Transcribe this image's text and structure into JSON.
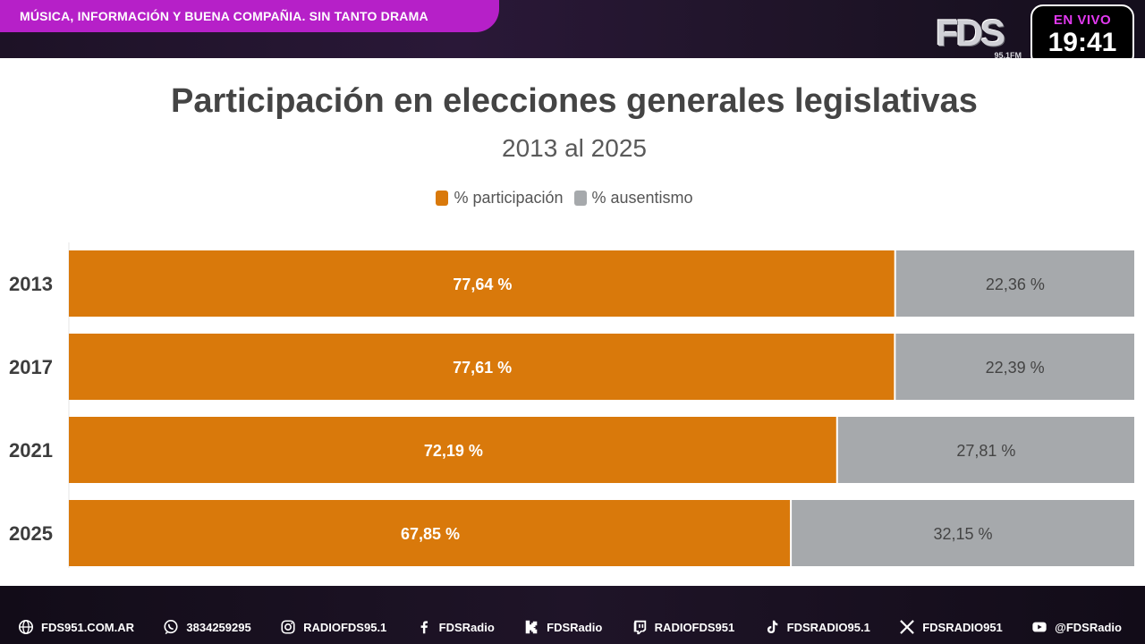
{
  "ticker": {
    "text": "MÚSICA, INFORMACIÓN Y BUENA COMPAÑIA. SIN TANTO DRAMA"
  },
  "logo": {
    "main": "FDS",
    "sub": "95.1FM"
  },
  "live": {
    "label": "EN VIVO",
    "time": "19:41"
  },
  "colors": {
    "participation": "#d9790b",
    "absenteeism": "#a6a9ac",
    "accent": "#b620c8"
  },
  "chart_data": {
    "type": "bar",
    "orientation": "horizontal",
    "stacked": true,
    "title": "Participación en elecciones generales legislativas",
    "subtitle": "2013 al 2025",
    "legend_position": "top-center",
    "categories": [
      "2013",
      "2017",
      "2021",
      "2025"
    ],
    "xlim": [
      0,
      100
    ],
    "series": [
      {
        "name": "% participación",
        "values": [
          77.64,
          77.61,
          72.19,
          67.85
        ],
        "labels": [
          "77,64 %",
          "77,61 %",
          "72,19 %",
          "67,85 %"
        ]
      },
      {
        "name": "% ausentismo",
        "values": [
          22.36,
          22.39,
          27.81,
          32.15
        ],
        "labels": [
          "22,36 %",
          "22,39 %",
          "27,81 %",
          "32,15 %"
        ]
      }
    ]
  },
  "social": [
    {
      "icon": "globe-icon",
      "label": "FDS951.COM.AR"
    },
    {
      "icon": "whatsapp-icon",
      "label": "3834259295"
    },
    {
      "icon": "instagram-icon",
      "label": "RADIOFDS95.1"
    },
    {
      "icon": "facebook-icon",
      "label": "FDSRadio"
    },
    {
      "icon": "kick-icon",
      "label": "FDSRadio"
    },
    {
      "icon": "twitch-icon",
      "label": "RADIOFDS951"
    },
    {
      "icon": "tiktok-icon",
      "label": "FDSRADIO95.1"
    },
    {
      "icon": "x-icon",
      "label": "FDSRADIO951"
    },
    {
      "icon": "youtube-icon",
      "label": "@FDSRadio"
    }
  ]
}
